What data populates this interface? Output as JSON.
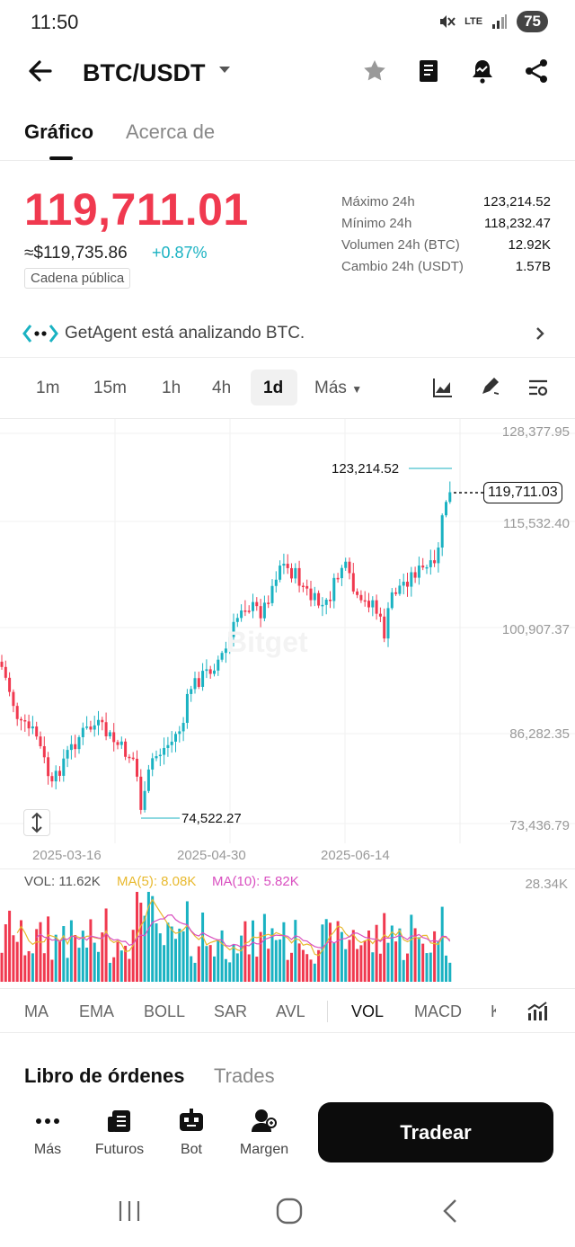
{
  "status_bar": {
    "time": "11:50",
    "network": "LTE",
    "battery": "75"
  },
  "header": {
    "pair": "BTC/USDT"
  },
  "tabs": [
    {
      "label": "Gráfico"
    },
    {
      "label": "Acerca de"
    }
  ],
  "price": {
    "last": "119,711.01",
    "usd": "≈$119,735.86",
    "change_pct": "+0.87%",
    "chain_label": "Cadena pública",
    "stats": [
      {
        "label": "Máximo 24h",
        "value": "123,214.52"
      },
      {
        "label": "Mínimo 24h",
        "value": "118,232.47"
      },
      {
        "label": "Volumen 24h (BTC)",
        "value": "12.92K"
      },
      {
        "label": "Cambio 24h (USDT)",
        "value": "1.57B"
      }
    ]
  },
  "agent": {
    "text": "GetAgent está analizando BTC."
  },
  "timeframes": {
    "items": [
      "1m",
      "15m",
      "1h",
      "4h",
      "1d"
    ],
    "active": "1d",
    "more_label": "Más"
  },
  "chart": {
    "watermark": "Bitget",
    "y_ticks": [
      "128,377.95",
      "115,532.40",
      "100,907.37",
      "86,282.35",
      "73,436.79"
    ],
    "x_ticks": [
      "2025-03-16",
      "2025-04-30",
      "2025-06-14"
    ],
    "current_price": "119,711.03",
    "high_label": "123,214.52",
    "low_label": "74,522.27",
    "up_color": "#1ab2c2",
    "down_color": "#f0394f"
  },
  "volume": {
    "vol_label": "VOL: 11.62K",
    "ma5_label": "MA(5): 8.08K",
    "ma10_label": "MA(10): 5.82K",
    "max_label": "28.34K",
    "ma5_color": "#e8b92e",
    "ma10_color": "#d94fc0"
  },
  "indicators": {
    "items": [
      "MA",
      "EMA",
      "BOLL",
      "SAR",
      "AVL",
      "VOL",
      "MACD",
      "K"
    ],
    "active": "VOL"
  },
  "bottom": {
    "orderbook_label": "Libro de órdenes",
    "trades_label": "Trades",
    "nav": [
      {
        "label": "Más"
      },
      {
        "label": "Futuros"
      },
      {
        "label": "Bot"
      },
      {
        "label": "Margen"
      }
    ],
    "trade_button": "Tradear"
  }
}
